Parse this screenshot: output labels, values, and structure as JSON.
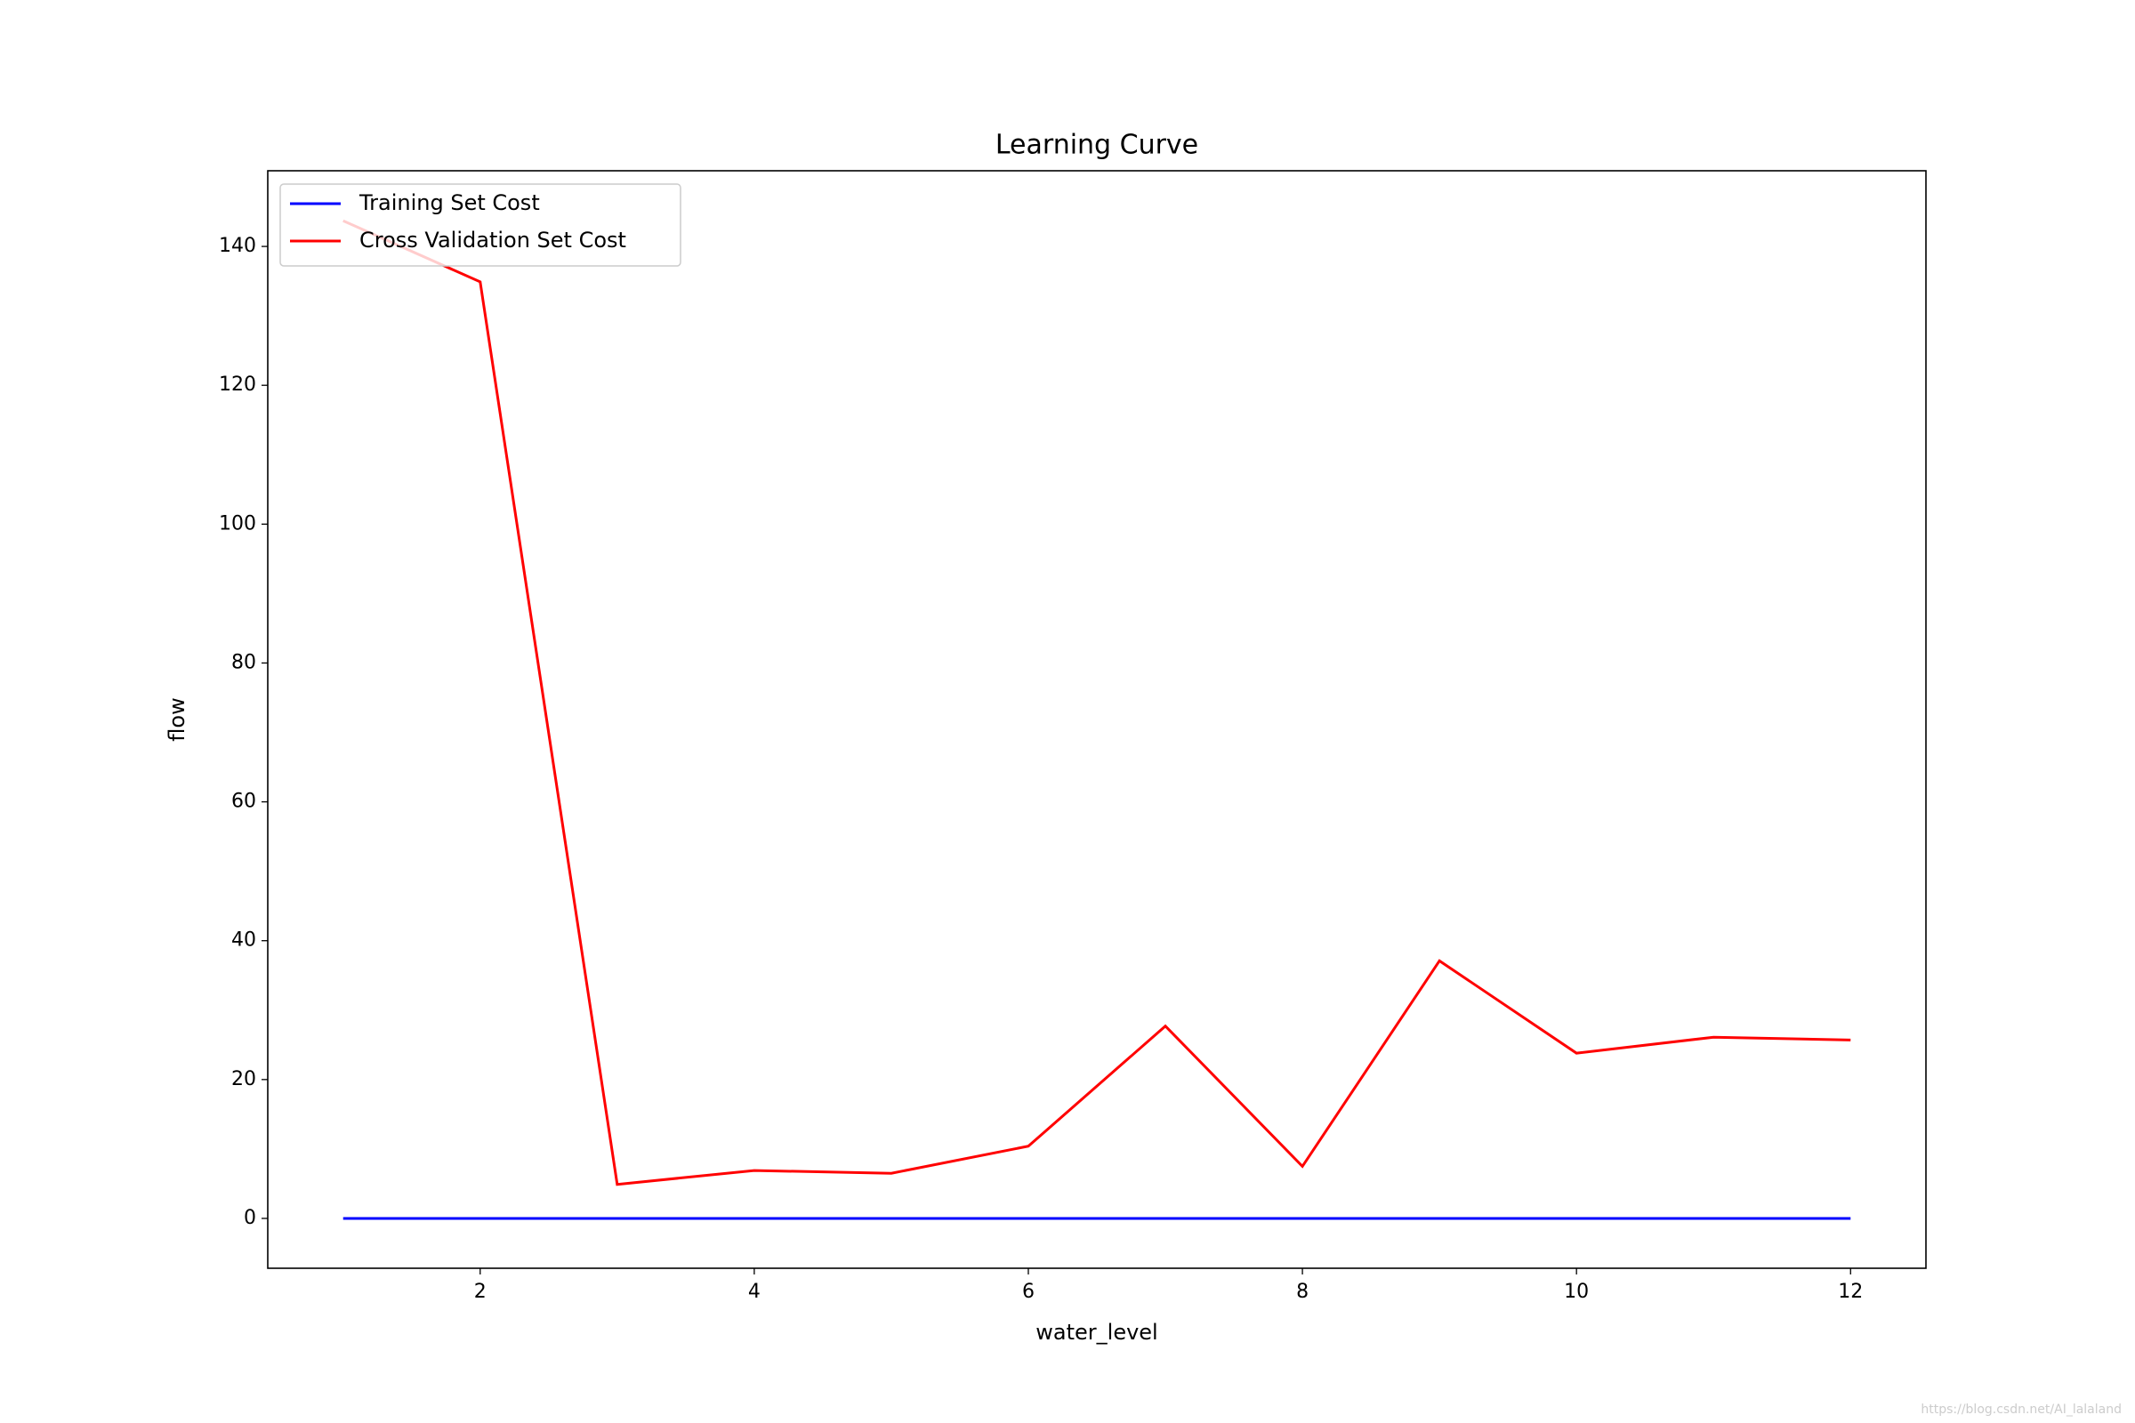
{
  "chart_data": {
    "type": "line",
    "title": "Learning Curve",
    "x_label": "water_level",
    "y_label": "flow",
    "x": [
      1,
      2,
      3,
      4,
      5,
      6,
      7,
      8,
      9,
      10,
      11,
      12
    ],
    "series": [
      {
        "name": "Training Set Cost",
        "color": "#0000ff",
        "values": [
          0,
          0,
          0,
          0,
          0,
          0,
          0,
          0,
          0,
          0,
          0,
          0
        ]
      },
      {
        "name": "Cross Validation Set Cost",
        "color": "#ff0000",
        "values": [
          143.7,
          134.9,
          4.9,
          6.9,
          6.5,
          10.4,
          27.7,
          7.5,
          37.1,
          23.8,
          26.1,
          25.7
        ]
      }
    ],
    "xlim": [
      0.45,
      12.55
    ],
    "xticks": [
      2,
      4,
      6,
      8,
      10,
      12
    ],
    "ylim": [
      -7.18,
      150.9
    ],
    "yticks": [
      0,
      20,
      40,
      60,
      80,
      100,
      120,
      140
    ],
    "grid": false,
    "legend": "upper-left",
    "watermark": "https://blog.csdn.net/AI_lalaland"
  }
}
